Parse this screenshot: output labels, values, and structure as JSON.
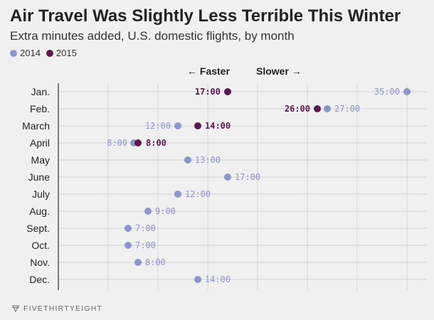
{
  "chart_data": {
    "type": "scatter",
    "title": "Air Travel Was Slightly Less Terrible This Winter",
    "subtitle": "Extra minutes added, U.S. domestic flights, by month",
    "direction_labels": {
      "left": "← Faster",
      "right": "Slower →"
    },
    "categories": [
      "Jan.",
      "Feb.",
      "March",
      "April",
      "May",
      "June",
      "July",
      "Aug.",
      "Sept.",
      "Oct.",
      "Nov.",
      "Dec."
    ],
    "xlim": [
      0,
      37
    ],
    "grid": true,
    "legend_position": "top-left",
    "series": [
      {
        "name": "2014",
        "color": "#8e95c8",
        "values": [
          35,
          27,
          12,
          8,
          13,
          17,
          12,
          9,
          7,
          7,
          8,
          14
        ],
        "labels": [
          "35:00",
          "27:00",
          "12:00",
          "8:00",
          "13:00",
          "17:00",
          "12:00",
          "9:00",
          "7:00",
          "7:00",
          "8:00",
          "14:00"
        ]
      },
      {
        "name": "2015",
        "color": "#5a1a4e",
        "values": [
          17,
          26,
          14,
          8,
          null,
          null,
          null,
          null,
          null,
          null,
          null,
          null
        ],
        "labels": [
          "17:00",
          "26:00",
          "14:00",
          "8:00",
          null,
          null,
          null,
          null,
          null,
          null,
          null,
          null
        ]
      }
    ]
  },
  "footer": {
    "brand": "FIVETHIRTYEIGHT",
    "logo_icon": "fivethirtyeight-logo-icon"
  }
}
